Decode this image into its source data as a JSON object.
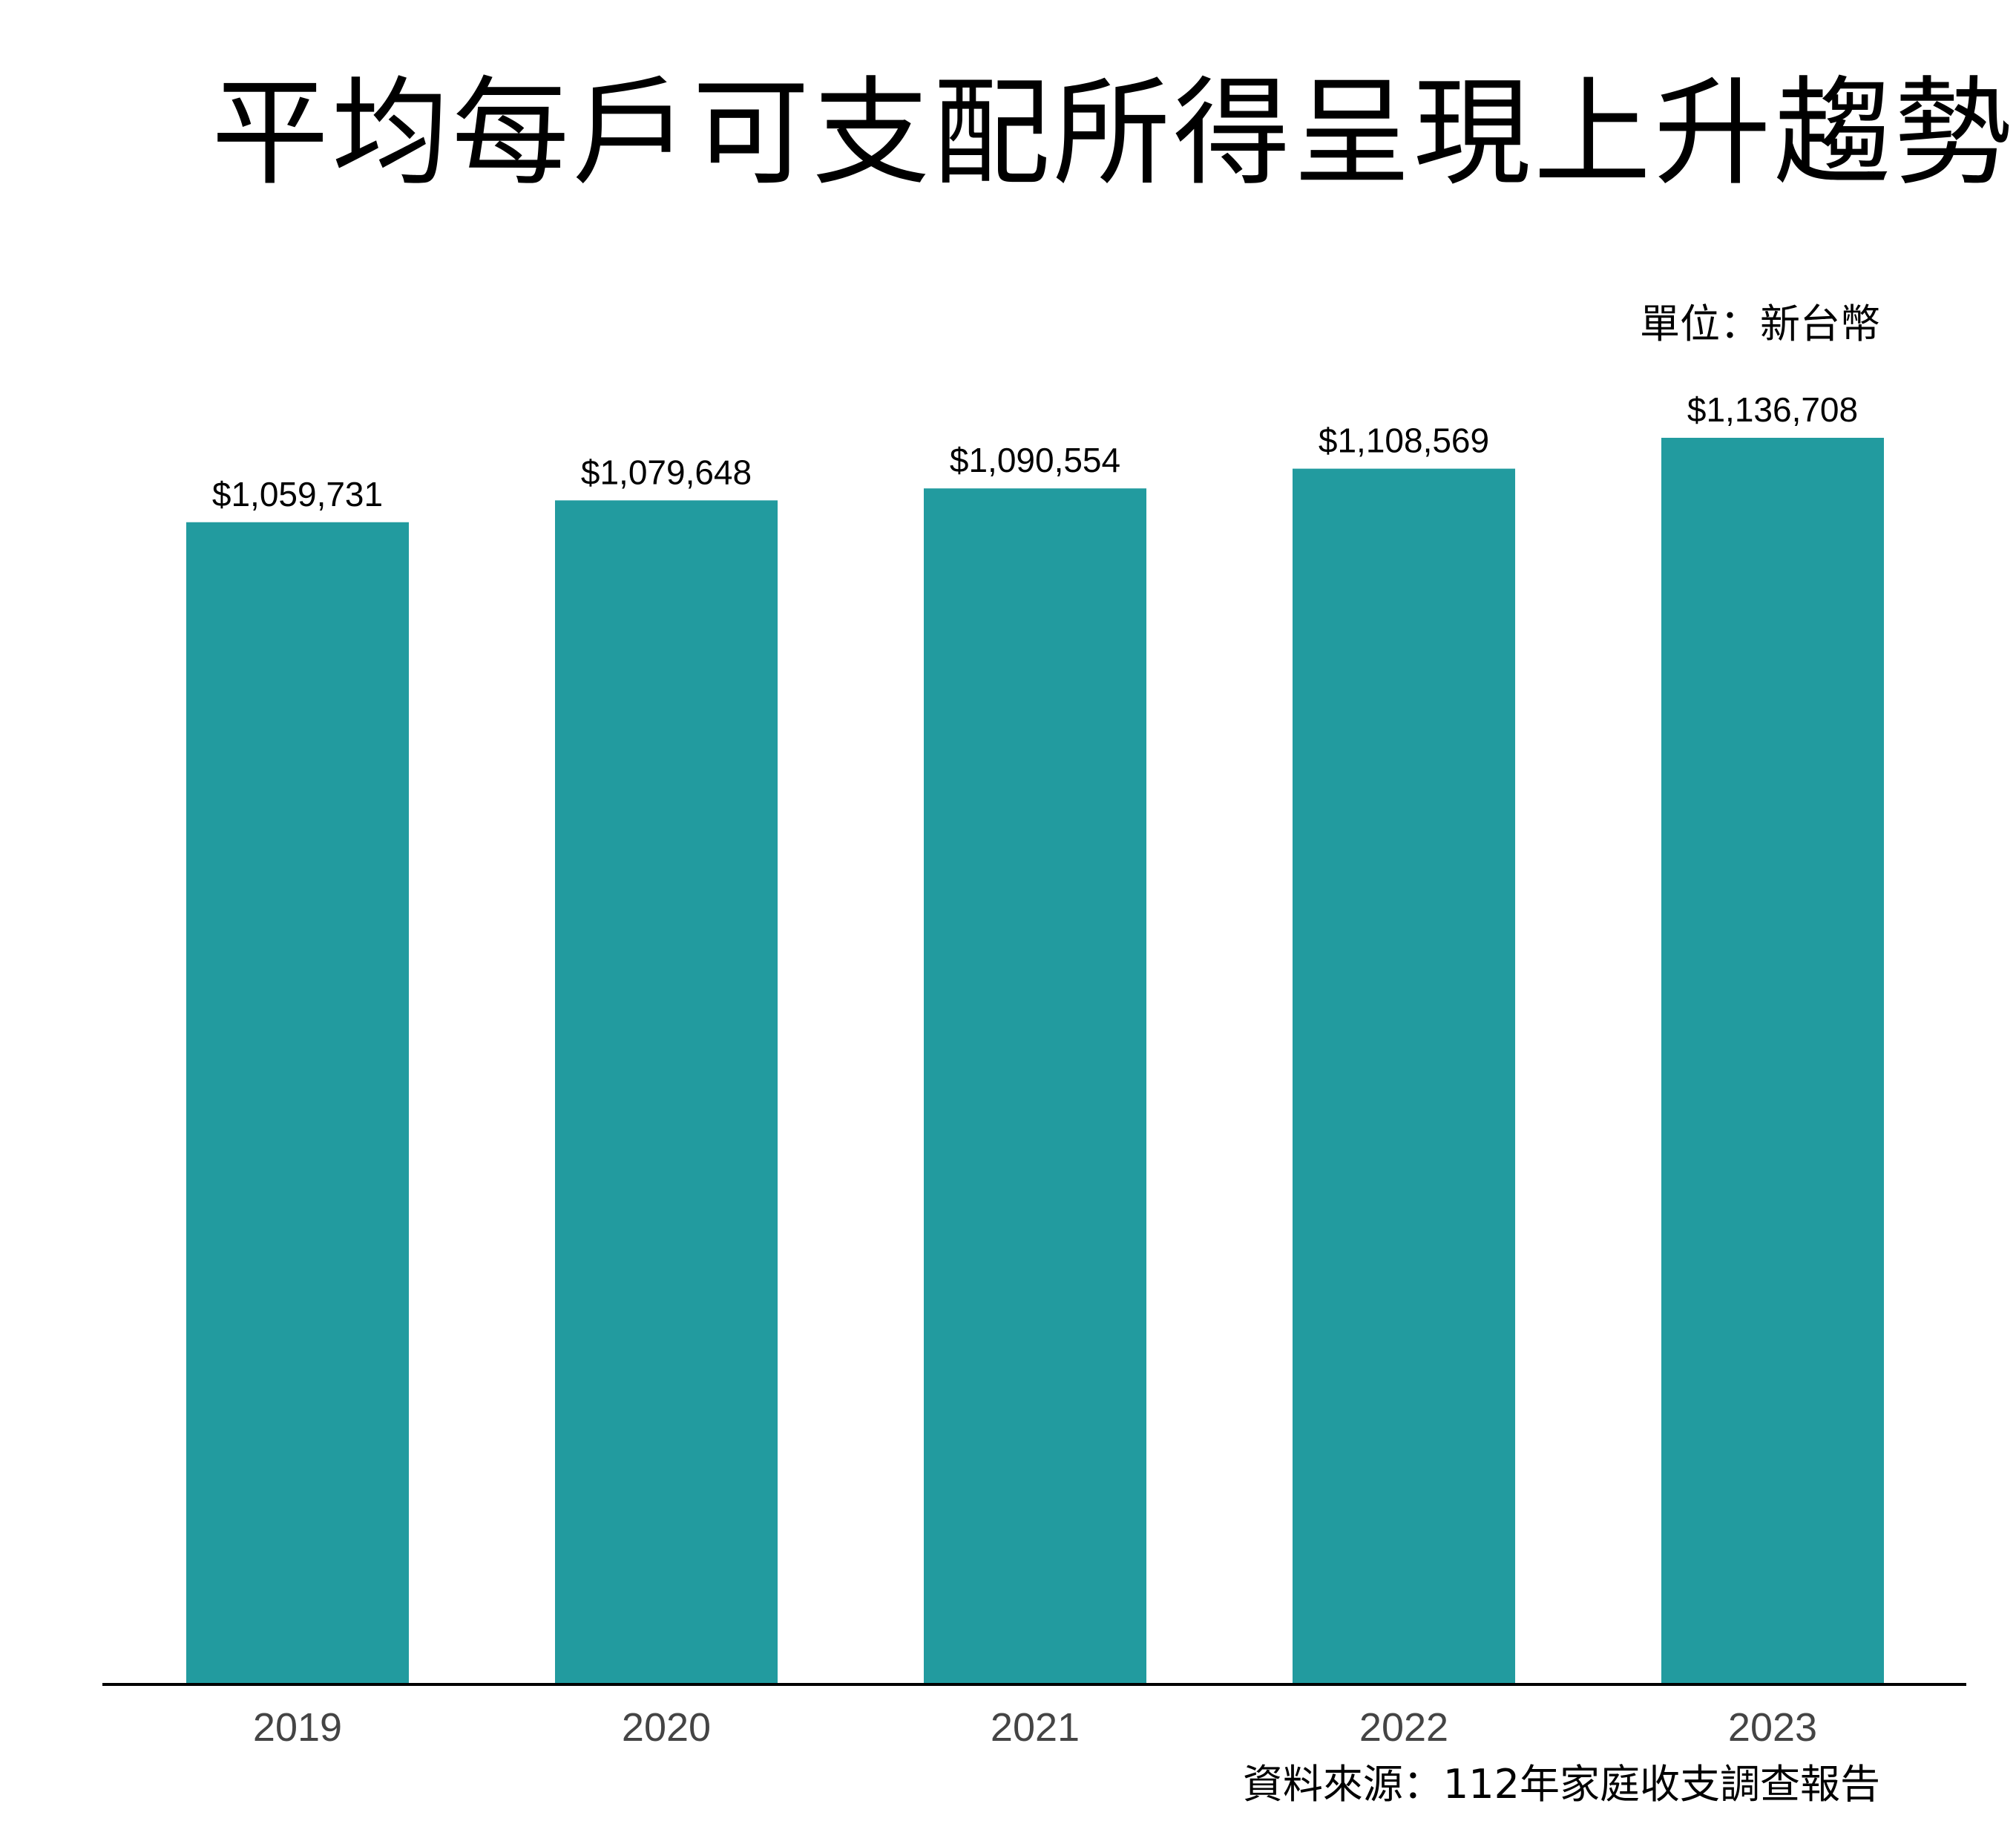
{
  "title": "平均每戶可支配所得呈現上升趨勢",
  "unit_note": "單位：新台幣",
  "source_note": "資料來源：112年家庭收支調查報告",
  "colors": {
    "bar": "#229b9f",
    "axis": "#000000",
    "tick_text": "#444444",
    "background": "#ffffff"
  },
  "chart_data": {
    "type": "bar",
    "categories": [
      "2019",
      "2020",
      "2021",
      "2022",
      "2023"
    ],
    "values": [
      1059731,
      1079648,
      1090554,
      1108569,
      1136708
    ],
    "value_labels": [
      "$1,059,731",
      "$1,079,648",
      "$1,090,554",
      "$1,108,569",
      "$1,136,708"
    ],
    "title": "平均每戶可支配所得呈現上升趨勢",
    "xlabel": "",
    "ylabel": "",
    "ylim": [
      0,
      1136708
    ],
    "grid": false,
    "legend": "none"
  }
}
